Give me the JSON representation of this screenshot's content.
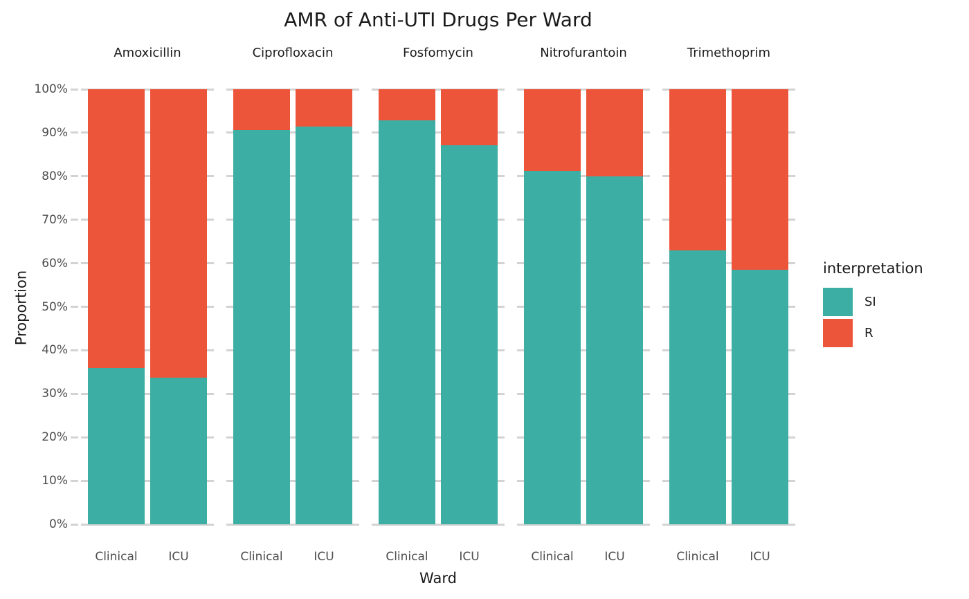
{
  "chart_data": {
    "type": "bar",
    "variant": "stacked-100-percent",
    "title": "AMR of Anti-UTI Drugs Per Ward",
    "xlabel": "Ward",
    "ylabel": "Proportion",
    "ylim": [
      0,
      100
    ],
    "y_ticks": [
      "0%",
      "10%",
      "20%",
      "30%",
      "40%",
      "50%",
      "60%",
      "70%",
      "80%",
      "90%",
      "100%"
    ],
    "grid": "horizontal-major",
    "legend": {
      "title": "interpretation",
      "position": "right",
      "entries": [
        {
          "label": "SI",
          "color": "#3CAEA3"
        },
        {
          "label": "R",
          "color": "#ED553B"
        }
      ]
    },
    "categories": [
      "Clinical",
      "ICU"
    ],
    "facets": [
      {
        "drug": "Amoxicillin",
        "bars": [
          {
            "ward": "Clinical",
            "SI": 36.0,
            "R": 64.0
          },
          {
            "ward": "ICU",
            "SI": 33.7,
            "R": 66.3
          }
        ]
      },
      {
        "drug": "Ciprofloxacin",
        "bars": [
          {
            "ward": "Clinical",
            "SI": 90.6,
            "R": 9.4
          },
          {
            "ward": "ICU",
            "SI": 91.4,
            "R": 8.6
          }
        ]
      },
      {
        "drug": "Fosfomycin",
        "bars": [
          {
            "ward": "Clinical",
            "SI": 92.9,
            "R": 7.1
          },
          {
            "ward": "ICU",
            "SI": 87.2,
            "R": 12.8
          }
        ]
      },
      {
        "drug": "Nitrofurantoin",
        "bars": [
          {
            "ward": "Clinical",
            "SI": 81.2,
            "R": 18.8
          },
          {
            "ward": "ICU",
            "SI": 79.9,
            "R": 20.1
          }
        ]
      },
      {
        "drug": "Trimethoprim",
        "bars": [
          {
            "ward": "Clinical",
            "SI": 63.0,
            "R": 37.0
          },
          {
            "ward": "ICU",
            "SI": 58.5,
            "R": 41.5
          }
        ]
      }
    ],
    "colors": {
      "si": "#3CAEA3",
      "r": "#ED553B",
      "gridline": "#d3d3d3",
      "tick_text": "#4d4d4d",
      "text": "#1a1a1a"
    }
  }
}
